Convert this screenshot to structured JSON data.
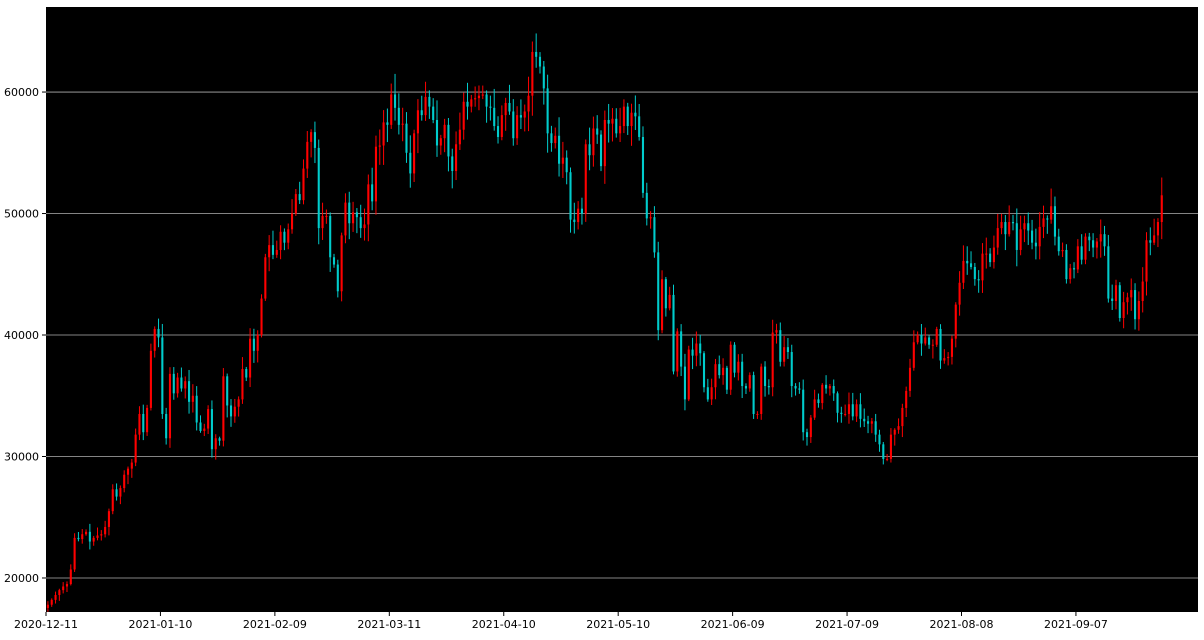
{
  "chart_data": {
    "type": "candlestick",
    "title": "",
    "xlabel": "",
    "ylabel": "",
    "ylim": [
      17200,
      67000
    ],
    "x_range": [
      "2020-12-11",
      "2021-10-09"
    ],
    "yticks": [
      20000,
      30000,
      40000,
      50000,
      60000
    ],
    "ytick_labels": [
      "20000",
      "30000",
      "40000",
      "50000",
      "60000"
    ],
    "xticks": [
      "2020-12-11",
      "2021-01-10",
      "2021-02-09",
      "2021-03-11",
      "2021-04-10",
      "2021-05-10",
      "2021-06-09",
      "2021-07-09",
      "2021-08-08",
      "2021-09-07"
    ],
    "xtick_labels": [
      "2020-12-11",
      "2021-01-10",
      "2021-02-09",
      "2021-03-11",
      "2021-04-10",
      "2021-05-10",
      "2021-06-09",
      "2021-07-09",
      "2021-08-08",
      "2021-09-07"
    ],
    "grid": "horizontal",
    "background": "#000000",
    "up_color": "#ff0000",
    "down_color": "#00cccc",
    "grid_color": "#b0b0b0",
    "daily_close": [
      17800,
      18200,
      18600,
      19000,
      19300,
      19500,
      20700,
      23300,
      23200,
      23600,
      23800,
      23000,
      23300,
      23500,
      23600,
      24200,
      25500,
      27300,
      26700,
      27400,
      28500,
      29000,
      29500,
      31800,
      33500,
      32000,
      34000,
      38700,
      40500,
      39800,
      33500,
      31500,
      36800,
      35200,
      36500,
      35600,
      36200,
      34500,
      35000,
      32800,
      32100,
      32300,
      33900,
      30600,
      31500,
      31300,
      36600,
      34200,
      33300,
      34100,
      34700,
      37200,
      36500,
      39700,
      38700,
      40000,
      43000,
      46400,
      47400,
      46600,
      47000,
      48500,
      47600,
      48700,
      50000,
      51600,
      51100,
      53700,
      55900,
      56700,
      55400,
      48800,
      49800,
      49800,
      46400,
      45800,
      43600,
      48200,
      50900,
      49200,
      50100,
      49700,
      48800,
      49100,
      52400,
      51000,
      55500,
      55600,
      57500,
      57300,
      59800,
      58700,
      57300,
      57400,
      55000,
      53300,
      56600,
      58500,
      58100,
      59600,
      58800,
      57700,
      55600,
      56200,
      57300,
      54700,
      53500,
      55700,
      56900,
      59200,
      58800,
      59400,
      59500,
      59700,
      59800,
      58800,
      58700,
      57200,
      56300,
      58100,
      59100,
      58400,
      56200,
      58100,
      57900,
      58400,
      59700,
      63300,
      62900,
      62100,
      60300,
      56600,
      55800,
      56400,
      54100,
      54600,
      53400,
      49500,
      49300,
      50400,
      50000,
      55700,
      54800,
      57000,
      56500,
      53900,
      57700,
      57400,
      57800,
      56600,
      57200,
      58800,
      57200,
      58300,
      58000,
      56300,
      51700,
      49600,
      49700,
      46800,
      40400,
      44600,
      42200,
      43300,
      37000,
      40300,
      37400,
      34700,
      38800,
      38300,
      39300,
      38500,
      35700,
      34700,
      35700,
      37600,
      36700,
      37300,
      35500,
      39200,
      36900,
      37800,
      35800,
      35600,
      36700,
      33500,
      33500,
      37400,
      35800,
      35700,
      40200,
      40400,
      37800,
      39000,
      38600,
      35800,
      35600,
      35500,
      32000,
      31600,
      33200,
      34700,
      34400,
      35900,
      35600,
      35800,
      35200,
      33600,
      33500,
      33500,
      34300,
      33300,
      34300,
      33100,
      32900,
      32700,
      32900,
      31800,
      31000,
      29800,
      29800,
      31800,
      32200,
      32500,
      34000,
      35400,
      37300,
      39400,
      40000,
      39300,
      39800,
      39200,
      39200,
      40500,
      37900,
      38100,
      38200,
      39700,
      42500,
      44300,
      46100,
      45900,
      45600,
      44600,
      44500,
      46700,
      46700,
      46000,
      47200,
      48800,
      49300,
      48300,
      49300,
      49200,
      47000,
      48700,
      49200,
      48600,
      47600,
      47300,
      48900,
      49600,
      49500,
      50600,
      48100,
      46900,
      47000,
      44600,
      45500,
      45400,
      47300,
      46200,
      48100,
      47800,
      47200,
      47700,
      48300,
      47300,
      43000,
      42800,
      44100,
      41400,
      42700,
      43100,
      43700,
      41300,
      42800,
      44400,
      47800,
      47600,
      48200,
      49300,
      51500
    ]
  }
}
